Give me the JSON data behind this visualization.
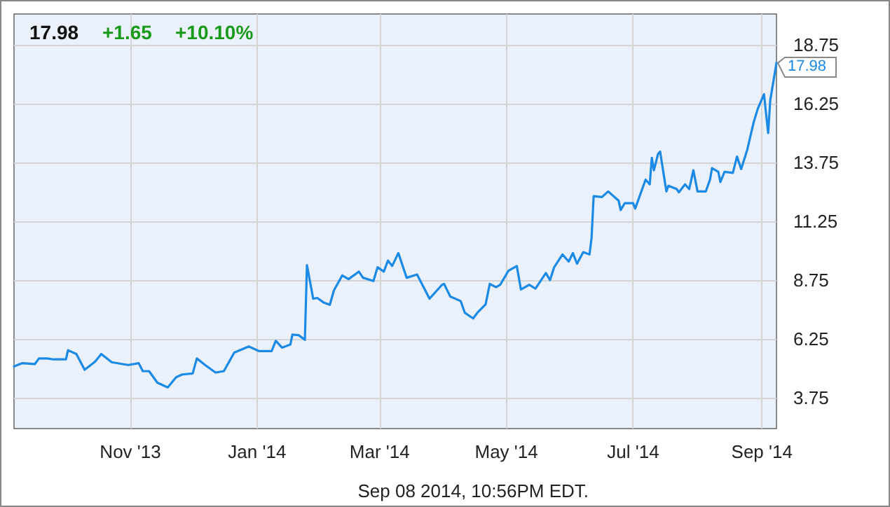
{
  "chart_data": {
    "type": "line",
    "title": "17.98",
    "annotations": [
      "+1.65",
      "+10.10%",
      {
        "text": "17.98",
        "x": "2014-09-08",
        "y": 17.98
      },
      "Sep 08 2014, 10:56PM EDT."
    ],
    "x": [
      "2013-09-06",
      "2013-09-10",
      "2013-09-16",
      "2013-09-18",
      "2013-09-22",
      "2013-09-25",
      "2013-10-01",
      "2013-10-02",
      "2013-10-06",
      "2013-10-10",
      "2013-10-15",
      "2013-10-18",
      "2013-10-23",
      "2013-10-31",
      "2013-11-05",
      "2013-11-07",
      "2013-11-10",
      "2013-11-14",
      "2013-11-19",
      "2013-11-23",
      "2013-11-26",
      "2013-12-01",
      "2013-12-03",
      "2013-12-07",
      "2013-12-12",
      "2013-12-16",
      "2013-12-21",
      "2013-12-28",
      "2014-01-02",
      "2014-01-08",
      "2014-01-10",
      "2014-01-13",
      "2014-01-17",
      "2014-01-18",
      "2014-01-21",
      "2014-01-24",
      "2014-01-25",
      "2014-01-28",
      "2014-01-30",
      "2014-02-02",
      "2014-02-05",
      "2014-02-07",
      "2014-02-11",
      "2014-02-14",
      "2014-02-19",
      "2014-02-21",
      "2014-02-26",
      "2014-02-28",
      "2014-03-03",
      "2014-03-05",
      "2014-03-07",
      "2014-03-10",
      "2014-03-14",
      "2014-03-19",
      "2014-03-25",
      "2014-03-31",
      "2014-04-01",
      "2014-04-04",
      "2014-04-09",
      "2014-04-11",
      "2014-04-15",
      "2014-04-17",
      "2014-04-21",
      "2014-04-23",
      "2014-04-26",
      "2014-04-28",
      "2014-05-02",
      "2014-05-06",
      "2014-05-08",
      "2014-05-12",
      "2014-05-15",
      "2014-05-20",
      "2014-05-22",
      "2014-05-24",
      "2014-05-28",
      "2014-05-31",
      "2014-06-02",
      "2014-06-04",
      "2014-06-07",
      "2014-06-10",
      "2014-06-11",
      "2014-06-12",
      "2014-06-16",
      "2014-06-19",
      "2014-06-24",
      "2014-06-25",
      "2014-06-27",
      "2014-07-01",
      "2014-07-02",
      "2014-07-07",
      "2014-07-09",
      "2014-07-10",
      "2014-07-11",
      "2014-07-13",
      "2014-07-14",
      "2014-07-17",
      "2014-07-18",
      "2014-07-22",
      "2014-07-23",
      "2014-07-26",
      "2014-07-28",
      "2014-07-30",
      "2014-08-01",
      "2014-08-05",
      "2014-08-07",
      "2014-08-08",
      "2014-08-11",
      "2014-08-12",
      "2014-08-14",
      "2014-08-18",
      "2014-08-20",
      "2014-08-22",
      "2014-08-25",
      "2014-08-28",
      "2014-08-30",
      "2014-09-02",
      "2014-09-04",
      "2014-09-05",
      "2014-09-08"
    ],
    "series": [
      {
        "color": "#1a8ae6",
        "values": [
          5.08,
          5.22,
          5.18,
          5.42,
          5.42,
          5.38,
          5.38,
          5.77,
          5.61,
          4.94,
          5.28,
          5.61,
          5.26,
          5.14,
          5.22,
          4.88,
          4.88,
          4.39,
          4.19,
          4.62,
          4.74,
          4.78,
          5.42,
          5.14,
          4.82,
          4.88,
          5.67,
          5.93,
          5.73,
          5.73,
          6.17,
          5.88,
          6.01,
          6.43,
          6.41,
          6.21,
          9.39,
          7.96,
          7.99,
          7.8,
          7.7,
          8.32,
          8.95,
          8.79,
          9.11,
          8.85,
          8.71,
          9.3,
          9.11,
          9.58,
          9.35,
          9.9,
          8.85,
          8.99,
          7.96,
          8.55,
          8.59,
          8.05,
          7.86,
          7.36,
          7.12,
          7.36,
          7.72,
          8.59,
          8.45,
          8.55,
          9.15,
          9.35,
          8.35,
          8.55,
          8.39,
          9.05,
          8.75,
          9.3,
          9.84,
          9.54,
          9.9,
          9.45,
          9.94,
          9.84,
          10.54,
          12.32,
          12.28,
          12.52,
          12.13,
          11.73,
          12.02,
          12.02,
          11.79,
          13.02,
          12.82,
          13.95,
          13.42,
          14.11,
          14.21,
          12.52,
          12.76,
          12.62,
          12.48,
          12.82,
          12.62,
          13.42,
          12.52,
          12.52,
          13.02,
          13.51,
          13.35,
          12.92,
          13.35,
          13.31,
          14.0,
          13.47,
          14.31,
          15.45,
          16.03,
          16.65,
          15.0,
          16.39,
          17.98
        ]
      }
    ],
    "xlim": [
      "2013-09-06",
      "2014-09-08"
    ],
    "xticks": [
      {
        "value": "2013-11-01",
        "label": "Nov '13"
      },
      {
        "value": "2014-01-01",
        "label": "Jan '14"
      },
      {
        "value": "2014-03-01",
        "label": "Mar '14"
      },
      {
        "value": "2014-05-01",
        "label": "May '14"
      },
      {
        "value": "2014-07-01",
        "label": "Jul '14"
      },
      {
        "value": "2014-09-01",
        "label": "Sep '14"
      }
    ],
    "ylim": [
      2.44,
      20.06
    ],
    "yticks": [
      3.75,
      6.25,
      8.75,
      11.25,
      13.75,
      16.25,
      18.75
    ],
    "grid": true,
    "marker": "none",
    "line_style": "solid"
  }
}
